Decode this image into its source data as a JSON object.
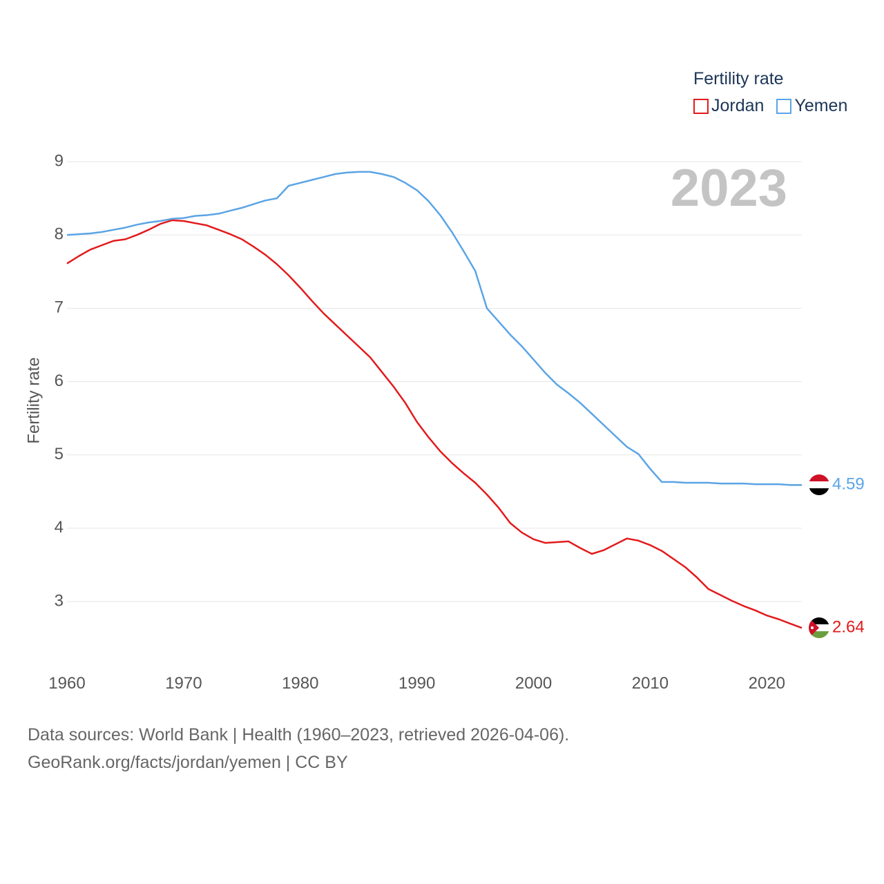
{
  "legend": {
    "title": "Fertility rate",
    "items": [
      {
        "label": "Jordan",
        "color": "#e31a1c"
      },
      {
        "label": "Yemen",
        "color": "#5ba4e5"
      }
    ]
  },
  "footer": {
    "line1": "Data sources: World Bank | Health (1960–2023, retrieved 2026-04-06).",
    "line2": "GeoRank.org/facts/jordan/yemen | CC BY"
  },
  "chart_data": {
    "type": "line",
    "title": "Fertility rate",
    "current_year": "2023",
    "xlabel": "",
    "ylabel": "Fertility rate",
    "xlim": [
      1960,
      2023
    ],
    "ylim": [
      2.4,
      9.2
    ],
    "x_ticks": [
      1960,
      1970,
      1980,
      1990,
      2000,
      2010,
      2020
    ],
    "y_ticks": [
      3,
      4,
      5,
      6,
      7,
      8,
      9
    ],
    "grid": true,
    "legend_position": "top-right",
    "x": [
      1960,
      1961,
      1962,
      1963,
      1964,
      1965,
      1966,
      1967,
      1968,
      1969,
      1970,
      1971,
      1972,
      1973,
      1974,
      1975,
      1976,
      1977,
      1978,
      1979,
      1980,
      1981,
      1982,
      1983,
      1984,
      1985,
      1986,
      1987,
      1988,
      1989,
      1990,
      1991,
      1992,
      1993,
      1994,
      1995,
      1996,
      1997,
      1998,
      1999,
      2000,
      2001,
      2002,
      2003,
      2004,
      2005,
      2006,
      2007,
      2008,
      2009,
      2010,
      2011,
      2012,
      2013,
      2014,
      2015,
      2016,
      2017,
      2018,
      2019,
      2020,
      2021,
      2022,
      2023
    ],
    "series": [
      {
        "name": "Jordan",
        "color": "#e31a1c",
        "end_label": "2.64",
        "values": [
          7.61,
          7.71,
          7.8,
          7.86,
          7.92,
          7.94,
          8.0,
          8.07,
          8.15,
          8.2,
          8.19,
          8.16,
          8.13,
          8.07,
          8.01,
          7.94,
          7.84,
          7.73,
          7.6,
          7.45,
          7.28,
          7.1,
          6.93,
          6.78,
          6.63,
          6.48,
          6.33,
          6.13,
          5.93,
          5.71,
          5.45,
          5.24,
          5.05,
          4.89,
          4.75,
          4.62,
          4.46,
          4.28,
          4.07,
          3.94,
          3.85,
          3.8,
          3.81,
          3.82,
          3.73,
          3.65,
          3.7,
          3.78,
          3.86,
          3.83,
          3.77,
          3.69,
          3.58,
          3.47,
          3.33,
          3.17,
          3.09,
          3.01,
          2.94,
          2.88,
          2.81,
          2.76,
          2.7,
          2.64
        ]
      },
      {
        "name": "Yemen",
        "color": "#5ba4e5",
        "end_label": "4.59",
        "values": [
          8.0,
          8.01,
          8.02,
          8.04,
          8.07,
          8.1,
          8.14,
          8.17,
          8.19,
          8.22,
          8.23,
          8.26,
          8.27,
          8.29,
          8.33,
          8.37,
          8.42,
          8.47,
          8.5,
          8.67,
          8.71,
          8.75,
          8.79,
          8.83,
          8.85,
          8.86,
          8.86,
          8.83,
          8.79,
          8.71,
          8.61,
          8.46,
          8.27,
          8.04,
          7.78,
          7.51,
          7.0,
          6.82,
          6.64,
          6.48,
          6.3,
          6.12,
          5.96,
          5.84,
          5.71,
          5.56,
          5.41,
          5.26,
          5.11,
          5.01,
          4.81,
          4.63,
          4.63,
          4.62,
          4.62,
          4.62,
          4.61,
          4.61,
          4.61,
          4.6,
          4.6,
          4.6,
          4.59,
          4.59
        ]
      }
    ]
  }
}
